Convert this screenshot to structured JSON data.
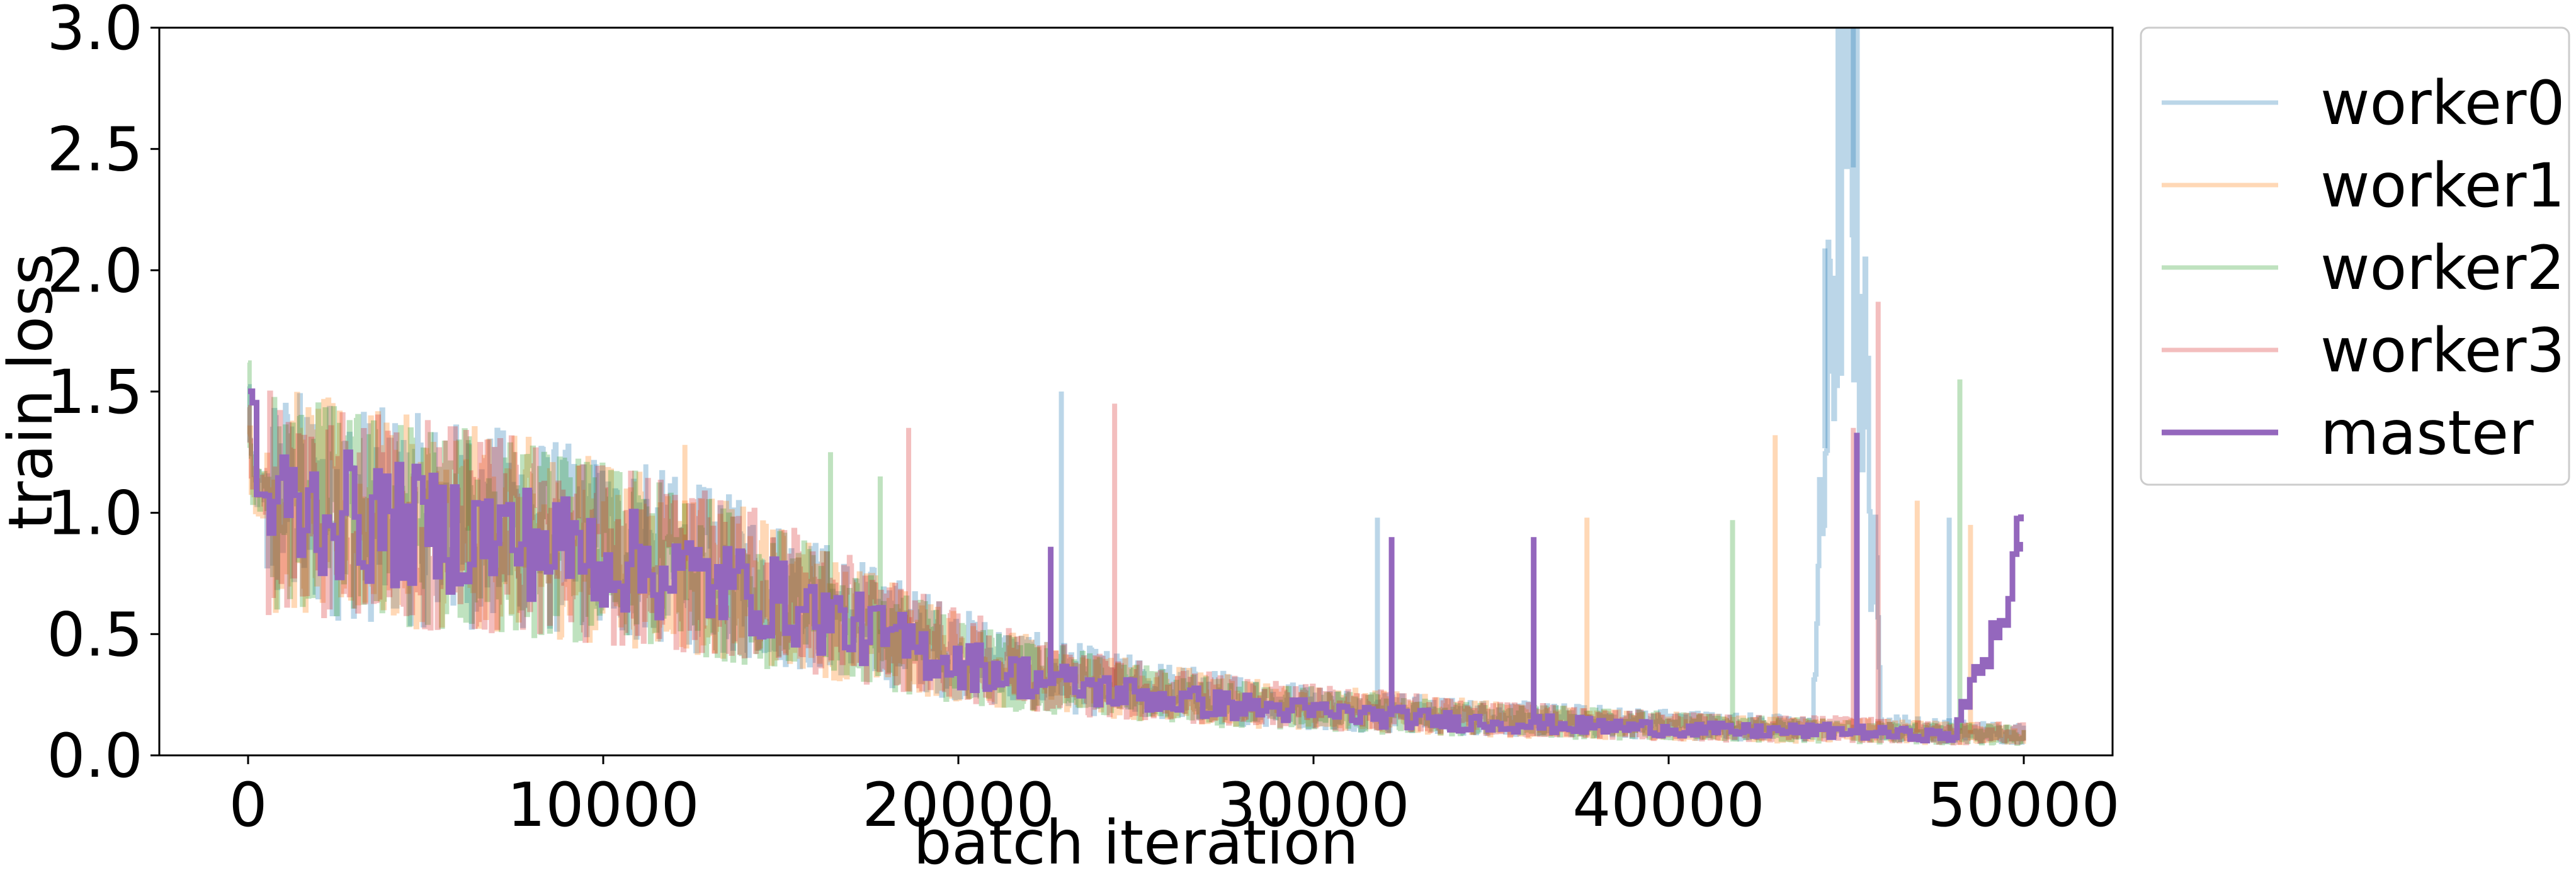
{
  "chart_data": {
    "type": "line",
    "title": "",
    "xlabel": "batch iteration",
    "ylabel": "train loss",
    "xlim": [
      -2500,
      52500
    ],
    "ylim": [
      0,
      3.0
    ],
    "xticks": [
      0,
      10000,
      20000,
      30000,
      40000,
      50000
    ],
    "xtick_labels": [
      "0",
      "10000",
      "20000",
      "30000",
      "40000",
      "50000"
    ],
    "yticks": [
      0.0,
      0.5,
      1.0,
      1.5,
      2.0,
      2.5,
      3.0
    ],
    "ytick_labels": [
      "0.0",
      "0.5",
      "1.0",
      "1.5",
      "2.0",
      "2.5",
      "3.0"
    ],
    "grid": false,
    "legend_position": "outside-right-top",
    "x": [
      0,
      100,
      200,
      500,
      1000,
      2000,
      4000,
      6000,
      8000,
      10000,
      12000,
      14000,
      16000,
      18000,
      20000,
      22000,
      24000,
      26000,
      28000,
      30000,
      32000,
      34000,
      36000,
      38000,
      40000,
      42000,
      44000,
      45000,
      46000,
      48000,
      50000
    ],
    "series": [
      {
        "name": "worker0",
        "color": "#1f77b4",
        "opacity": 0.3,
        "values": [
          1.48,
          1.15,
          1.1,
          1.08,
          1.05,
          1.03,
          0.98,
          0.95,
          0.92,
          0.85,
          0.8,
          0.72,
          0.62,
          0.52,
          0.42,
          0.35,
          0.3,
          0.26,
          0.23,
          0.2,
          0.18,
          0.16,
          0.15,
          0.14,
          0.13,
          0.12,
          0.11,
          3.0,
          0.12,
          0.1,
          0.09
        ],
        "spikes": [
          [
            9800,
            1.2
          ],
          [
            11200,
            1.2
          ],
          [
            22900,
            1.5
          ],
          [
            31800,
            0.98
          ],
          [
            44400,
            2.09
          ],
          [
            45200,
            3.0
          ],
          [
            47900,
            0.98
          ]
        ]
      },
      {
        "name": "worker1",
        "color": "#ff7f0e",
        "opacity": 0.3,
        "values": [
          1.45,
          1.12,
          1.09,
          1.07,
          1.05,
          1.02,
          0.97,
          0.94,
          0.9,
          0.84,
          0.78,
          0.7,
          0.6,
          0.5,
          0.4,
          0.34,
          0.29,
          0.25,
          0.22,
          0.2,
          0.18,
          0.16,
          0.14,
          0.13,
          0.12,
          0.11,
          0.1,
          0.1,
          0.1,
          0.09,
          0.09
        ],
        "spikes": [
          [
            12300,
            1.28
          ],
          [
            37700,
            0.98
          ],
          [
            43000,
            1.32
          ],
          [
            47000,
            1.05
          ],
          [
            48500,
            0.95
          ]
        ]
      },
      {
        "name": "worker2",
        "color": "#2ca02c",
        "opacity": 0.3,
        "values": [
          1.5,
          1.13,
          1.1,
          1.08,
          1.04,
          1.01,
          0.96,
          0.93,
          0.89,
          0.83,
          0.77,
          0.69,
          0.59,
          0.49,
          0.39,
          0.33,
          0.28,
          0.24,
          0.21,
          0.19,
          0.17,
          0.15,
          0.14,
          0.13,
          0.12,
          0.11,
          0.1,
          0.1,
          0.09,
          0.09,
          0.08
        ],
        "spikes": [
          [
            6200,
            1.3
          ],
          [
            16400,
            1.25
          ],
          [
            17800,
            1.15
          ],
          [
            41800,
            0.97
          ],
          [
            48200,
            1.55
          ]
        ]
      },
      {
        "name": "worker3",
        "color": "#d62728",
        "opacity": 0.3,
        "values": [
          1.47,
          1.14,
          1.1,
          1.07,
          1.04,
          1.02,
          0.97,
          0.93,
          0.9,
          0.84,
          0.78,
          0.71,
          0.61,
          0.51,
          0.41,
          0.35,
          0.29,
          0.25,
          0.22,
          0.2,
          0.18,
          0.16,
          0.15,
          0.13,
          0.12,
          0.11,
          0.11,
          0.11,
          0.1,
          0.09,
          0.09
        ],
        "spikes": [
          [
            18600,
            1.35
          ],
          [
            24400,
            1.45
          ],
          [
            45200,
            1.35
          ],
          [
            45900,
            1.87
          ]
        ]
      },
      {
        "name": "master",
        "color": "#9467bd",
        "opacity": 1.0,
        "values": [
          1.5,
          1.5,
          1.1,
          1.05,
          1.02,
          1.0,
          0.95,
          0.92,
          0.88,
          0.82,
          0.75,
          0.68,
          0.58,
          0.48,
          0.38,
          0.32,
          0.27,
          0.23,
          0.2,
          0.18,
          0.16,
          0.14,
          0.13,
          0.12,
          0.11,
          0.1,
          0.1,
          0.1,
          0.09,
          0.08,
          0.88
        ],
        "spikes": [
          [
            22600,
            0.86
          ],
          [
            32200,
            0.9
          ],
          [
            36200,
            0.9
          ],
          [
            45300,
            1.33
          ],
          [
            49900,
            0.88
          ]
        ]
      }
    ]
  }
}
